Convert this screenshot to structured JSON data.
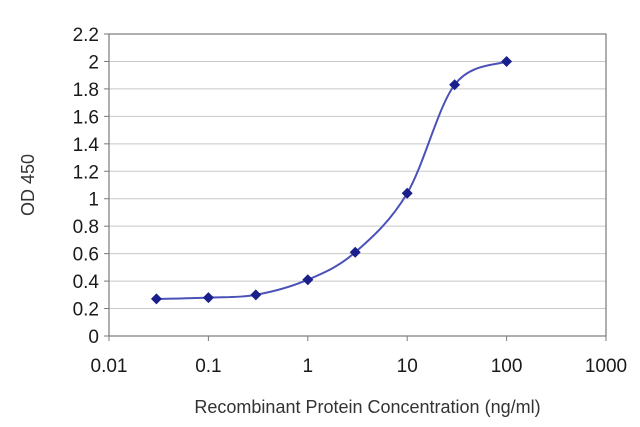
{
  "chart_data": {
    "type": "line",
    "xlabel": "Recombinant Protein Concentration (ng/ml)",
    "ylabel": "OD 450",
    "x_scale": "log",
    "xlim": [
      0.01,
      1000
    ],
    "ylim": [
      0,
      2.2
    ],
    "x_ticks": [
      0.01,
      0.1,
      1,
      10,
      100,
      1000
    ],
    "x_tick_labels": [
      "0.01",
      "0.1",
      "1",
      "10",
      "100",
      "1000"
    ],
    "y_ticks": [
      0,
      0.2,
      0.4,
      0.6,
      0.8,
      1,
      1.2,
      1.4,
      1.6,
      1.8,
      2,
      2.2
    ],
    "y_tick_labels": [
      "0",
      "0.2",
      "0.4",
      "0.6",
      "0.8",
      "1",
      "1.2",
      "1.4",
      "1.6",
      "1.8",
      "2",
      "2.2"
    ],
    "grid": "horizontal",
    "legend": "none",
    "series": [
      {
        "x": [
          0.03,
          0.1,
          0.3,
          1,
          3,
          10,
          30,
          100
        ],
        "y": [
          0.27,
          0.28,
          0.3,
          0.41,
          0.61,
          1.04,
          1.83,
          2.0
        ]
      }
    ],
    "colors": {
      "line": "#4a52b8",
      "marker": "#1a1f8c",
      "grid": "#c8c8c8",
      "frame": "#7a7a7a"
    }
  }
}
